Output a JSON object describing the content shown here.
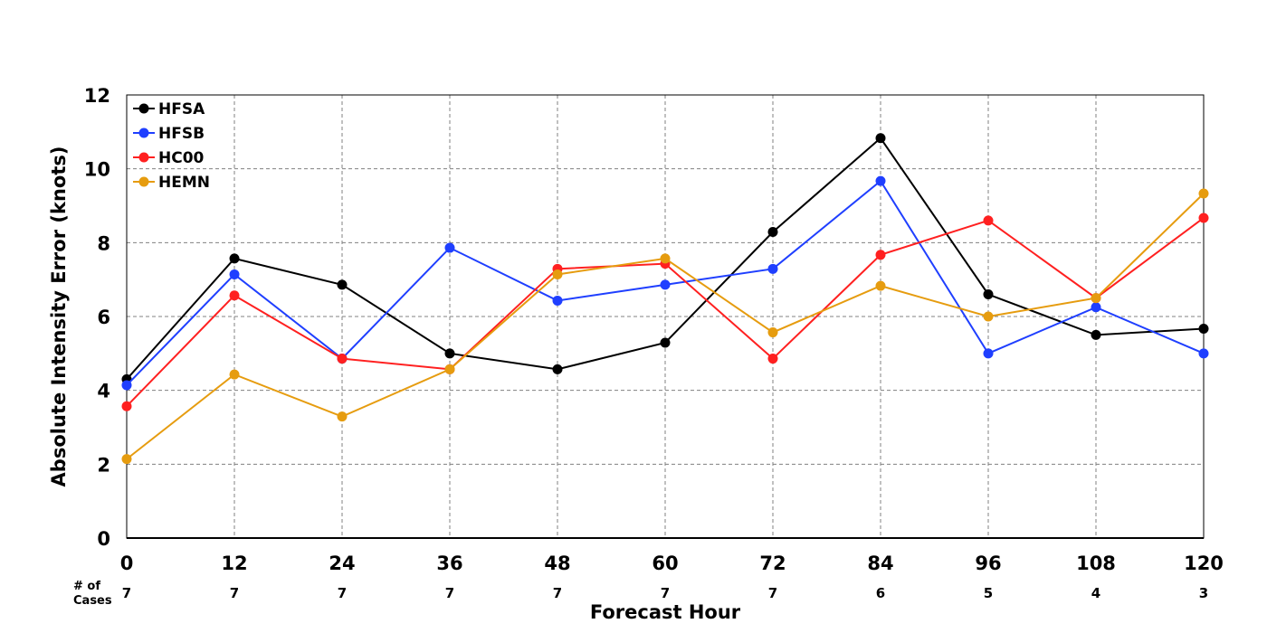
{
  "chart_data": {
    "type": "line",
    "title": "",
    "xlabel": "Forecast Hour",
    "ylabel": "Absolute Intensity Error (knots)",
    "x": [
      0,
      12,
      24,
      36,
      48,
      60,
      72,
      84,
      96,
      108,
      120
    ],
    "xlim": [
      0,
      120
    ],
    "ylim": [
      0,
      12
    ],
    "yticks": [
      0,
      2,
      4,
      6,
      8,
      10,
      12
    ],
    "grid": true,
    "legend_position": "top-left",
    "series": [
      {
        "name": "HFSA",
        "color": "#000000",
        "values": [
          4.3,
          7.57,
          6.86,
          5.0,
          4.57,
          5.29,
          8.29,
          10.83,
          6.6,
          5.5,
          5.67
        ]
      },
      {
        "name": "HFSB",
        "color": "#1f3fff",
        "values": [
          4.14,
          7.14,
          4.86,
          7.86,
          6.43,
          6.86,
          7.29,
          9.67,
          5.0,
          6.25,
          5.0
        ]
      },
      {
        "name": "HC00",
        "color": "#ff2020",
        "values": [
          3.57,
          6.57,
          4.86,
          4.57,
          7.29,
          7.43,
          4.86,
          7.67,
          8.6,
          6.5,
          8.67
        ]
      },
      {
        "name": "HEMN",
        "color": "#e69c0f",
        "values": [
          2.14,
          4.43,
          3.29,
          4.57,
          7.14,
          7.57,
          5.57,
          6.83,
          6.0,
          6.5,
          9.33
        ]
      }
    ],
    "cases_label": "# of Cases",
    "cases": [
      7,
      7,
      7,
      7,
      7,
      7,
      7,
      6,
      5,
      4,
      3
    ]
  }
}
